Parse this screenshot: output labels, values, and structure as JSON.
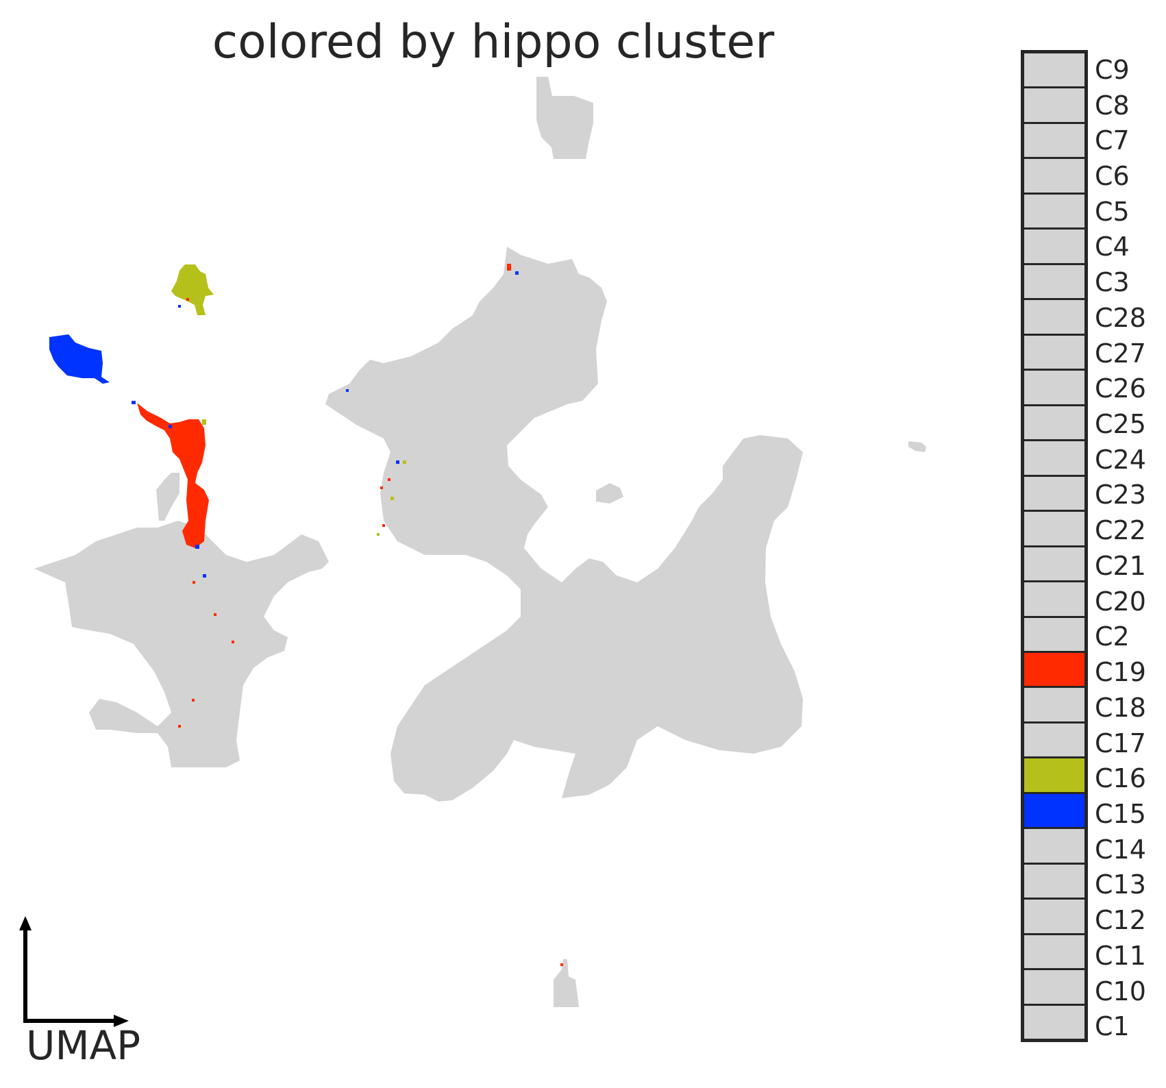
{
  "title": "colored by hippo cluster",
  "axis_label": "UMAP",
  "colors": {
    "background_cells": "#d3d3d3",
    "C19": "#ff2a00",
    "C16": "#b5c01b",
    "C15": "#0033ff",
    "text": "#262626",
    "arrow": "#000000"
  },
  "chart_data": {
    "type": "scatter",
    "title": "colored by hippo cluster",
    "xlabel": "UMAP",
    "ylabel": "",
    "grid": false,
    "legend_placement": "right",
    "legend": [
      {
        "label": "C9",
        "color": "#d3d3d3"
      },
      {
        "label": "C8",
        "color": "#d3d3d3"
      },
      {
        "label": "C7",
        "color": "#d3d3d3"
      },
      {
        "label": "C6",
        "color": "#d3d3d3"
      },
      {
        "label": "C5",
        "color": "#d3d3d3"
      },
      {
        "label": "C4",
        "color": "#d3d3d3"
      },
      {
        "label": "C3",
        "color": "#d3d3d3"
      },
      {
        "label": "C28",
        "color": "#d3d3d3"
      },
      {
        "label": "C27",
        "color": "#d3d3d3"
      },
      {
        "label": "C26",
        "color": "#d3d3d3"
      },
      {
        "label": "C25",
        "color": "#d3d3d3"
      },
      {
        "label": "C24",
        "color": "#d3d3d3"
      },
      {
        "label": "C23",
        "color": "#d3d3d3"
      },
      {
        "label": "C22",
        "color": "#d3d3d3"
      },
      {
        "label": "C21",
        "color": "#d3d3d3"
      },
      {
        "label": "C20",
        "color": "#d3d3d3"
      },
      {
        "label": "C2",
        "color": "#d3d3d3"
      },
      {
        "label": "C19",
        "color": "#ff2a00"
      },
      {
        "label": "C18",
        "color": "#d3d3d3"
      },
      {
        "label": "C17",
        "color": "#d3d3d3"
      },
      {
        "label": "C16",
        "color": "#b5c01b"
      },
      {
        "label": "C15",
        "color": "#0033ff"
      },
      {
        "label": "C14",
        "color": "#d3d3d3"
      },
      {
        "label": "C13",
        "color": "#d3d3d3"
      },
      {
        "label": "C12",
        "color": "#d3d3d3"
      },
      {
        "label": "C11",
        "color": "#d3d3d3"
      },
      {
        "label": "C10",
        "color": "#d3d3d3"
      },
      {
        "label": "C1",
        "color": "#d3d3d3"
      }
    ],
    "highlighted_clusters": [
      {
        "name": "C15",
        "color": "#0033ff"
      },
      {
        "name": "C16",
        "color": "#b5c01b"
      },
      {
        "name": "C19",
        "color": "#ff2a00"
      }
    ]
  }
}
